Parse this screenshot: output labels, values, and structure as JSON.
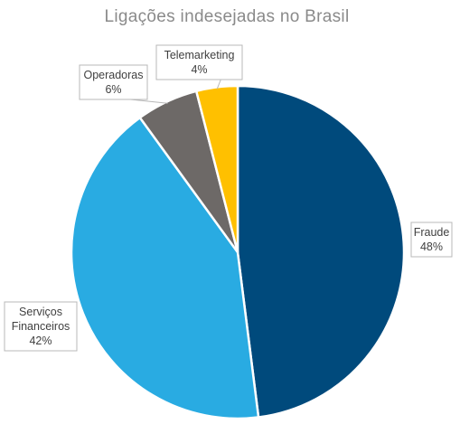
{
  "chart_data": {
    "type": "pie",
    "title": "Ligações indesejadas no Brasil",
    "slices": [
      {
        "name": "Fraude",
        "label_lines": [
          "Fraude"
        ],
        "value": 48,
        "value_label": "48%",
        "color": "#004a7c"
      },
      {
        "name": "Serviços Financeiros",
        "label_lines": [
          "Serviços",
          "Financeiros"
        ],
        "value": 42,
        "value_label": "42%",
        "color": "#29abe2"
      },
      {
        "name": "Operadoras",
        "label_lines": [
          "Operadoras"
        ],
        "value": 6,
        "value_label": "6%",
        "color": "#6d6967"
      },
      {
        "name": "Telemarketing",
        "label_lines": [
          "Telemarketing"
        ],
        "value": 4,
        "value_label": "4%",
        "color": "#ffc000"
      }
    ],
    "start_angle": "12 o'clock",
    "direction": "clockwise",
    "legend": "none"
  }
}
